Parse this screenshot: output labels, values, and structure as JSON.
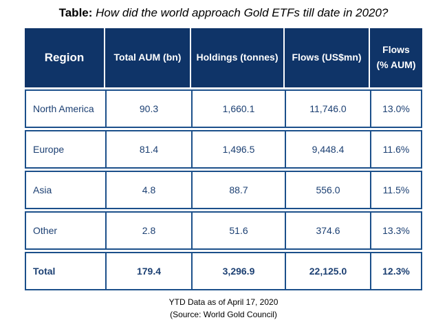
{
  "title": {
    "lead": "Table:",
    "question": "How did the world approach Gold ETFs till date in 2020?"
  },
  "columns": [
    "Region",
    "Total AUM (bn)",
    "Holdings (tonnes)",
    "Flows (US$mn)",
    "Flows",
    "(% AUM)"
  ],
  "rows": [
    {
      "region": "North America",
      "aum": "90.3",
      "holdings": "1,660.1",
      "flows": "11,746.0",
      "pct": "13.0%"
    },
    {
      "region": "Europe",
      "aum": "81.4",
      "holdings": "1,496.5",
      "flows": "9,448.4",
      "pct": "11.6%"
    },
    {
      "region": "Asia",
      "aum": "4.8",
      "holdings": "88.7",
      "flows": "556.0",
      "pct": "11.5%"
    },
    {
      "region": "Other",
      "aum": "2.8",
      "holdings": "51.6",
      "flows": "374.6",
      "pct": "13.3%"
    }
  ],
  "total": {
    "region": "Total",
    "aum": "179.4",
    "holdings": "3,296.9",
    "flows": "22,125.0",
    "pct": "12.3%"
  },
  "footer": {
    "line1": "YTD Data as of April 17, 2020",
    "line2": "(Source: World Gold Council)"
  },
  "colors": {
    "header_bg": "#0f3468",
    "border": "#1b4f8a",
    "text": "#1b3f72"
  }
}
